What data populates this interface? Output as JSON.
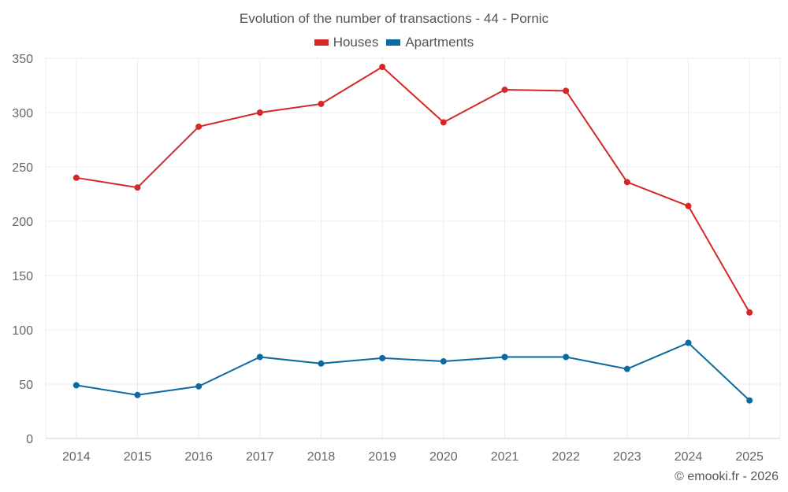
{
  "chart_data": {
    "type": "line",
    "title": "Evolution of the number of transactions - 44 - Pornic",
    "xlabel": "",
    "ylabel": "",
    "categories": [
      "2014",
      "2015",
      "2016",
      "2017",
      "2018",
      "2019",
      "2020",
      "2021",
      "2022",
      "2023",
      "2024",
      "2025"
    ],
    "ylim": [
      0,
      350
    ],
    "yticks": [
      0,
      50,
      100,
      150,
      200,
      250,
      300,
      350
    ],
    "grid": true,
    "legend_position": "top-center",
    "series": [
      {
        "name": "Houses",
        "color": "#d62728",
        "values": [
          240,
          231,
          287,
          300,
          308,
          342,
          291,
          321,
          320,
          236,
          214,
          116
        ]
      },
      {
        "name": "Apartments",
        "color": "#0b6aa2",
        "values": [
          49,
          40,
          48,
          75,
          69,
          74,
          71,
          75,
          75,
          64,
          88,
          35
        ]
      }
    ]
  },
  "credit": "© emooki.fr - 2026"
}
